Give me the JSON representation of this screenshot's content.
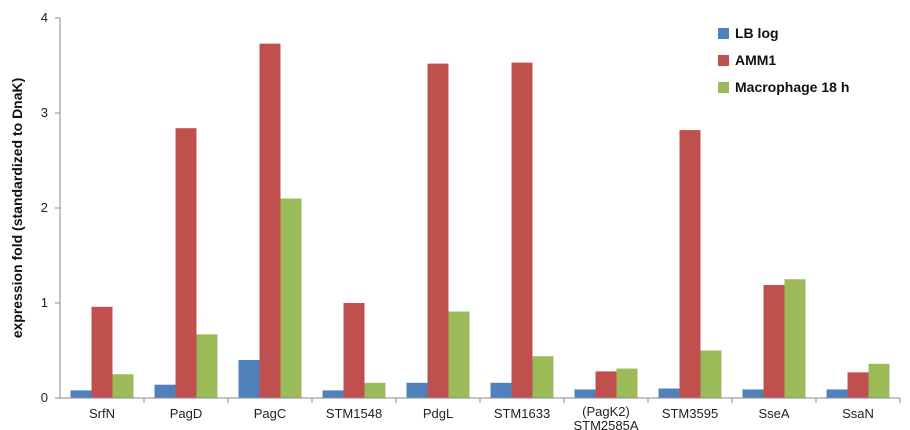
{
  "chart_data": {
    "type": "bar",
    "title": "",
    "xlabel": "",
    "ylabel": "expression fold (standardized to DnaK)",
    "ylim": [
      0,
      4
    ],
    "yticks": [
      0,
      1,
      2,
      3,
      4
    ],
    "grid": false,
    "legend_position": "top-right",
    "categories": [
      [
        "SrfN"
      ],
      [
        "PagD"
      ],
      [
        "PagC"
      ],
      [
        "STM1548"
      ],
      [
        "PdgL"
      ],
      [
        "STM1633"
      ],
      [
        "(PagK2)",
        "STM2585A"
      ],
      [
        "STM3595"
      ],
      [
        "SseA"
      ],
      [
        "SsaN"
      ]
    ],
    "series": [
      {
        "name": "LB log",
        "color": "#4f81bd",
        "values": [
          0.08,
          0.14,
          0.4,
          0.08,
          0.16,
          0.16,
          0.09,
          0.1,
          0.09,
          0.09
        ]
      },
      {
        "name": "AMM1",
        "color": "#c0504d",
        "values": [
          0.96,
          2.84,
          3.73,
          1.0,
          3.52,
          3.53,
          0.28,
          2.82,
          1.19,
          0.27
        ]
      },
      {
        "name": "Macrophage 18 h",
        "color": "#9bbb59",
        "values": [
          0.25,
          0.67,
          2.1,
          0.16,
          0.91,
          0.44,
          0.31,
          0.5,
          1.25,
          0.36
        ]
      }
    ]
  }
}
